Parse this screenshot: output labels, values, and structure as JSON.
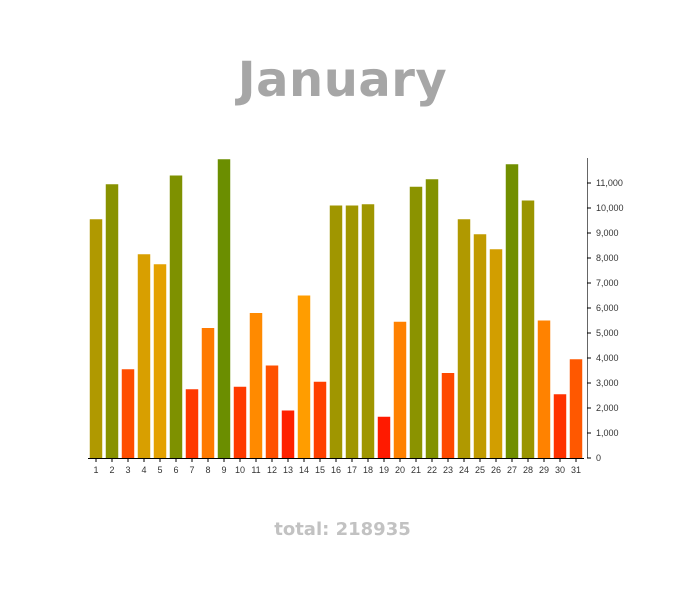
{
  "title": "January",
  "total": {
    "label": "total:",
    "value": "218935"
  },
  "chart_data": {
    "type": "bar",
    "title": "January",
    "xlabel": "",
    "ylabel": "",
    "categories": [
      "1",
      "2",
      "3",
      "4",
      "5",
      "6",
      "7",
      "8",
      "9",
      "10",
      "11",
      "12",
      "13",
      "14",
      "15",
      "16",
      "17",
      "18",
      "19",
      "20",
      "21",
      "22",
      "23",
      "24",
      "25",
      "26",
      "27",
      "28",
      "29",
      "30",
      "31"
    ],
    "values": [
      9550,
      10950,
      3550,
      8150,
      7750,
      11300,
      2750,
      5200,
      11950,
      2850,
      5800,
      3700,
      1900,
      6500,
      3050,
      10100,
      10100,
      10150,
      1650,
      5450,
      10850,
      11150,
      3400,
      9550,
      8950,
      8350,
      11750,
      10300,
      5500,
      2550,
      3950
    ],
    "ylim": [
      0,
      12000
    ],
    "yticks": [
      0,
      1000,
      2000,
      3000,
      4000,
      5000,
      6000,
      7000,
      8000,
      9000,
      10000,
      11000
    ],
    "ytick_labels": [
      "0",
      "1,000",
      "2,000",
      "3,000",
      "4,000",
      "5,000",
      "6,000",
      "7,000",
      "8,000",
      "9,000",
      "10,000",
      "11,000"
    ],
    "y_axis_side": "right",
    "grid": false,
    "color_scale": {
      "low": "#ff1a00",
      "mid": "#ffa500",
      "high": "#6b8e00"
    }
  }
}
